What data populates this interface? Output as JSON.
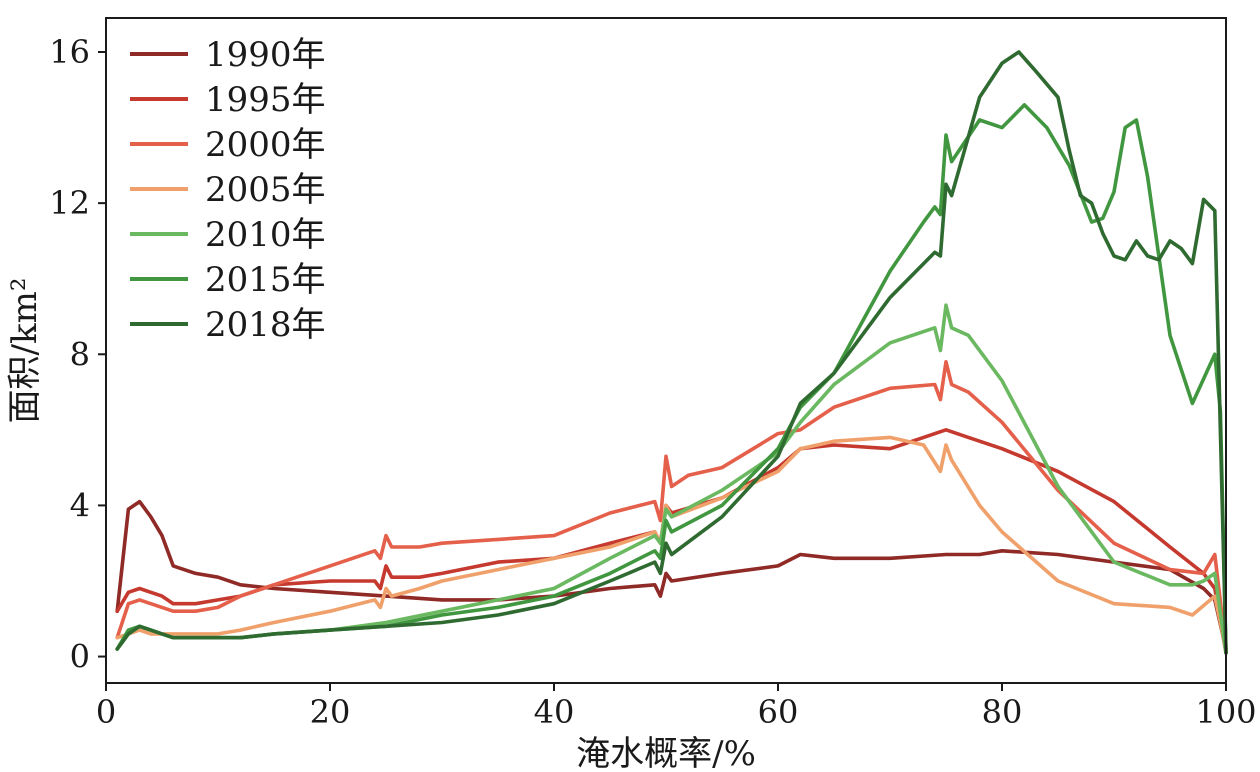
{
  "chart_data": {
    "type": "line",
    "xlabel": "淹水概率/%",
    "ylabel": "面积/km²",
    "xlim": [
      0,
      100
    ],
    "ylim": [
      -0.7,
      16.9
    ],
    "xticks": [
      0,
      20,
      40,
      60,
      80,
      100
    ],
    "yticks": [
      0,
      4,
      8,
      12,
      16
    ],
    "xtick_labels": [
      "0",
      "20",
      "40",
      "60",
      "80",
      "100"
    ],
    "ytick_labels": [
      "0",
      "4",
      "8",
      "12",
      "16"
    ],
    "grid": false,
    "legend_position": "top-left",
    "series": [
      {
        "name": "1990年",
        "color": "#8f2a26",
        "x": [
          1,
          2,
          3,
          4,
          5,
          6,
          8,
          10,
          12,
          15,
          20,
          25,
          30,
          35,
          40,
          45,
          49,
          49.5,
          50,
          50.5,
          55,
          60,
          62,
          65,
          70,
          75,
          78,
          80,
          85,
          90,
          95,
          98,
          99,
          100
        ],
        "y": [
          1.2,
          3.9,
          4.1,
          3.7,
          3.2,
          2.4,
          2.2,
          2.1,
          1.9,
          1.8,
          1.7,
          1.6,
          1.5,
          1.5,
          1.6,
          1.8,
          1.9,
          1.6,
          2.2,
          2.0,
          2.2,
          2.4,
          2.7,
          2.6,
          2.6,
          2.7,
          2.7,
          2.8,
          2.7,
          2.5,
          2.3,
          1.8,
          1.5,
          0.2
        ]
      },
      {
        "name": "1995年",
        "color": "#c5392f",
        "x": [
          1,
          2,
          3,
          4,
          5,
          6,
          8,
          10,
          12,
          15,
          20,
          24,
          24.5,
          25,
          25.5,
          28,
          30,
          35,
          40,
          45,
          49,
          49.5,
          50,
          50.5,
          55,
          60,
          62,
          65,
          70,
          73,
          75,
          77,
          80,
          85,
          90,
          95,
          98,
          99,
          100
        ],
        "y": [
          1.2,
          1.7,
          1.8,
          1.7,
          1.6,
          1.4,
          1.4,
          1.5,
          1.6,
          1.9,
          2.0,
          2.0,
          1.8,
          2.4,
          2.1,
          2.1,
          2.2,
          2.5,
          2.6,
          3.0,
          3.3,
          3.0,
          4.0,
          3.8,
          4.2,
          5.0,
          5.5,
          5.6,
          5.5,
          5.8,
          6.0,
          5.8,
          5.5,
          4.9,
          4.1,
          2.9,
          2.2,
          1.8,
          0.1
        ]
      },
      {
        "name": "2000年",
        "color": "#e5604b",
        "x": [
          1,
          2,
          3,
          4,
          5,
          6,
          8,
          10,
          12,
          15,
          20,
          24,
          24.5,
          25,
          25.5,
          28,
          30,
          35,
          40,
          45,
          49,
          49.5,
          50,
          50.5,
          52,
          55,
          60,
          62,
          65,
          70,
          74,
          74.5,
          75,
          75.5,
          77,
          80,
          85,
          90,
          95,
          98,
          99,
          100
        ],
        "y": [
          0.5,
          1.4,
          1.5,
          1.4,
          1.3,
          1.2,
          1.2,
          1.3,
          1.6,
          1.9,
          2.4,
          2.8,
          2.6,
          3.2,
          2.9,
          2.9,
          3.0,
          3.1,
          3.2,
          3.8,
          4.1,
          3.6,
          5.3,
          4.5,
          4.8,
          5.0,
          5.9,
          6.0,
          6.6,
          7.1,
          7.2,
          6.8,
          7.8,
          7.2,
          7.0,
          6.2,
          4.4,
          3.0,
          2.3,
          2.2,
          2.7,
          0.2
        ]
      },
      {
        "name": "2005年",
        "color": "#f0a06a",
        "x": [
          1,
          2,
          3,
          4,
          5,
          6,
          8,
          10,
          12,
          15,
          20,
          24,
          24.5,
          25,
          25.5,
          28,
          30,
          35,
          40,
          45,
          49,
          49.5,
          50,
          50.5,
          55,
          60,
          62,
          65,
          70,
          73,
          74.5,
          75,
          75.5,
          78,
          80,
          85,
          90,
          95,
          97,
          99,
          100
        ],
        "y": [
          0.5,
          0.6,
          0.7,
          0.6,
          0.6,
          0.6,
          0.6,
          0.6,
          0.7,
          0.9,
          1.2,
          1.5,
          1.3,
          1.8,
          1.6,
          1.8,
          2.0,
          2.3,
          2.6,
          2.9,
          3.3,
          3.0,
          4.0,
          3.7,
          4.2,
          4.9,
          5.5,
          5.7,
          5.8,
          5.6,
          4.9,
          5.6,
          5.2,
          4.0,
          3.3,
          2.0,
          1.4,
          1.3,
          1.1,
          1.6,
          0.2
        ]
      },
      {
        "name": "2010年",
        "color": "#6ab860",
        "x": [
          1,
          2,
          3,
          4,
          5,
          6,
          8,
          10,
          12,
          15,
          20,
          25,
          30,
          35,
          40,
          45,
          49,
          49.5,
          50,
          50.5,
          55,
          60,
          62,
          65,
          70,
          73,
          74,
          74.5,
          75,
          75.5,
          77,
          80,
          85,
          90,
          95,
          97,
          98,
          99,
          100
        ],
        "y": [
          0.2,
          0.6,
          0.8,
          0.7,
          0.6,
          0.5,
          0.5,
          0.5,
          0.5,
          0.6,
          0.7,
          0.9,
          1.2,
          1.5,
          1.8,
          2.6,
          3.2,
          3.0,
          3.9,
          3.7,
          4.4,
          5.4,
          6.2,
          7.2,
          8.3,
          8.6,
          8.7,
          8.1,
          9.3,
          8.7,
          8.5,
          7.3,
          4.5,
          2.5,
          1.9,
          1.9,
          2.0,
          2.2,
          0.1
        ]
      },
      {
        "name": "2015年",
        "color": "#41973f",
        "x": [
          1,
          2,
          3,
          4,
          5,
          6,
          8,
          10,
          12,
          15,
          20,
          25,
          30,
          35,
          40,
          45,
          49,
          49.5,
          50,
          50.5,
          55,
          60,
          62,
          65,
          70,
          73,
          74,
          74.5,
          75,
          75.5,
          78,
          80,
          82,
          84,
          86,
          88,
          89,
          90,
          91,
          92,
          93,
          94,
          95,
          97,
          99,
          99.5,
          100
        ],
        "y": [
          0.2,
          0.7,
          0.8,
          0.7,
          0.6,
          0.5,
          0.5,
          0.5,
          0.5,
          0.6,
          0.7,
          0.8,
          1.1,
          1.3,
          1.6,
          2.2,
          2.8,
          2.6,
          3.6,
          3.3,
          4.0,
          5.5,
          6.6,
          7.5,
          10.2,
          11.5,
          11.9,
          11.7,
          13.8,
          13.1,
          14.2,
          14.0,
          14.6,
          14.0,
          13.0,
          11.5,
          11.6,
          12.3,
          14.0,
          14.2,
          12.7,
          10.6,
          8.5,
          6.7,
          8.0,
          6.5,
          0.1
        ]
      },
      {
        "name": "2018年",
        "color": "#2f6b31",
        "x": [
          1,
          2,
          3,
          4,
          5,
          6,
          8,
          10,
          12,
          15,
          20,
          25,
          30,
          35,
          40,
          45,
          49,
          49.5,
          50,
          50.5,
          55,
          60,
          62,
          65,
          70,
          74,
          74.5,
          75,
          75.5,
          78,
          80,
          81.5,
          83,
          85,
          86,
          87,
          88,
          89,
          90,
          91,
          92,
          93,
          94,
          95,
          96,
          97,
          98,
          99,
          100
        ],
        "y": [
          0.2,
          0.6,
          0.8,
          0.7,
          0.6,
          0.5,
          0.5,
          0.5,
          0.5,
          0.6,
          0.7,
          0.8,
          0.9,
          1.1,
          1.4,
          2.0,
          2.5,
          2.2,
          3.0,
          2.7,
          3.7,
          5.3,
          6.7,
          7.5,
          9.5,
          10.7,
          10.6,
          12.5,
          12.2,
          14.8,
          15.7,
          16.0,
          15.5,
          14.8,
          13.4,
          12.2,
          12.0,
          11.2,
          10.6,
          10.5,
          11.0,
          10.6,
          10.5,
          11.0,
          10.8,
          10.4,
          12.1,
          11.8,
          0.1
        ]
      }
    ]
  }
}
